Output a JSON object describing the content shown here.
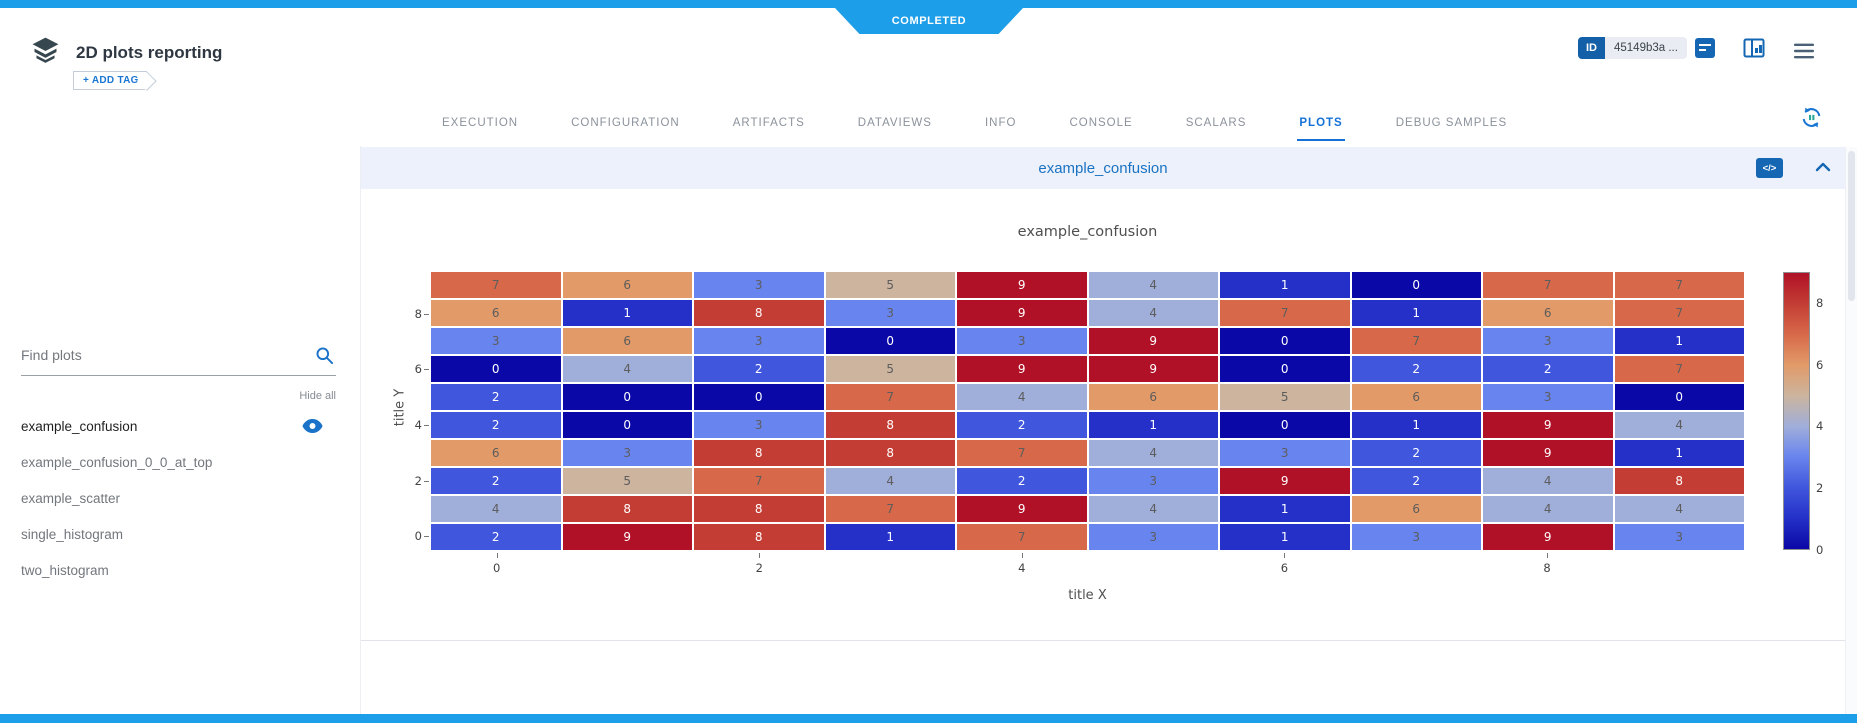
{
  "status_badge": "COMPLETED",
  "header": {
    "title": "2D plots reporting",
    "add_tag_label": "+ ADD TAG",
    "id_label": "ID",
    "id_value": "45149b3a ..."
  },
  "tabs": [
    {
      "label": "EXECUTION",
      "active": false
    },
    {
      "label": "CONFIGURATION",
      "active": false
    },
    {
      "label": "ARTIFACTS",
      "active": false
    },
    {
      "label": "DATAVIEWS",
      "active": false
    },
    {
      "label": "INFO",
      "active": false
    },
    {
      "label": "CONSOLE",
      "active": false
    },
    {
      "label": "SCALARS",
      "active": false
    },
    {
      "label": "PLOTS",
      "active": true
    },
    {
      "label": "DEBUG SAMPLES",
      "active": false
    }
  ],
  "sidebar": {
    "search_placeholder": "Find plots",
    "hide_all_label": "Hide all",
    "items": [
      {
        "label": "example_confusion",
        "selected": true
      },
      {
        "label": "example_confusion_0_0_at_top",
        "selected": false
      },
      {
        "label": "example_scatter",
        "selected": false
      },
      {
        "label": "single_histogram",
        "selected": false
      },
      {
        "label": "two_histogram",
        "selected": false
      }
    ]
  },
  "plot_section": {
    "header_title": "example_confusion",
    "code_icon_label": "</>"
  },
  "chart_data": {
    "type": "heatmap",
    "title": "example_confusion",
    "xlabel": "title X",
    "ylabel": "title Y",
    "zmin": 0,
    "zmax": 9,
    "x_tick_labels": [
      0,
      2,
      4,
      6,
      8
    ],
    "y_tick_labels": [
      8,
      6,
      4,
      2,
      0
    ],
    "colorbar_ticks": [
      0,
      2,
      4,
      6,
      8
    ],
    "z_rows_y0_to_y9": [
      [
        2,
        9,
        8,
        1,
        7,
        3,
        1,
        3,
        9,
        3
      ],
      [
        4,
        8,
        8,
        7,
        9,
        4,
        1,
        6,
        4,
        4
      ],
      [
        2,
        5,
        7,
        4,
        2,
        3,
        9,
        2,
        4,
        8
      ],
      [
        6,
        3,
        8,
        8,
        7,
        4,
        3,
        2,
        9,
        1
      ],
      [
        2,
        0,
        3,
        8,
        2,
        1,
        0,
        1,
        9,
        4
      ],
      [
        2,
        0,
        0,
        7,
        4,
        6,
        5,
        6,
        3,
        0
      ],
      [
        0,
        4,
        2,
        5,
        9,
        9,
        0,
        2,
        2,
        7
      ],
      [
        3,
        6,
        3,
        0,
        3,
        9,
        0,
        7,
        3,
        1
      ],
      [
        6,
        1,
        8,
        3,
        9,
        4,
        7,
        1,
        6,
        7
      ],
      [
        7,
        6,
        3,
        5,
        9,
        4,
        1,
        0,
        7,
        7
      ]
    ],
    "colorscale": [
      "#0a08a6",
      "#2430c8",
      "#4056dc",
      "#6884ee",
      "#a0aeda",
      "#ccb49e",
      "#e29a68",
      "#d7694a",
      "#c33d34",
      "#b01127"
    ],
    "legend_position": "right-colorbar",
    "grid": false
  }
}
